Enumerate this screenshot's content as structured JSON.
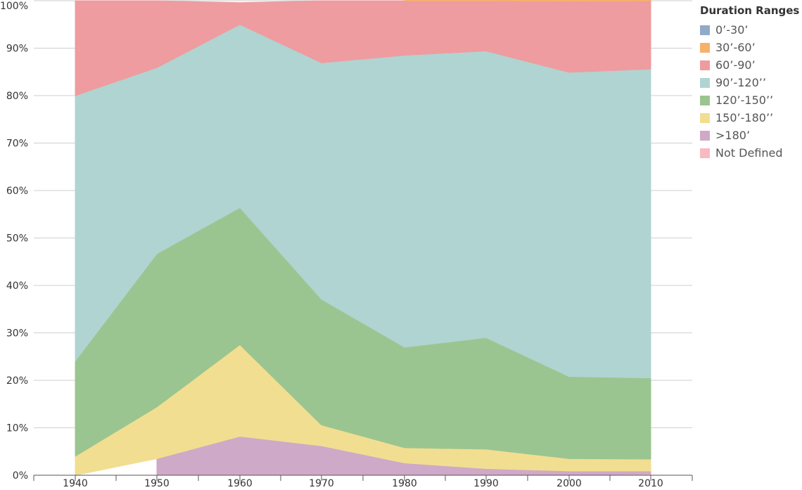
{
  "chart_data": {
    "type": "area",
    "stacked": true,
    "x": [
      "1940",
      "1950",
      "1960",
      "1970",
      "1980",
      "1990",
      "2000",
      "2010"
    ],
    "ylim": [
      0,
      100
    ],
    "yticks": [
      "0%",
      "10%",
      "20%",
      "30%",
      "40%",
      "50%",
      "60%",
      "70%",
      "80%",
      "90%",
      "100%"
    ],
    "legend_title": "Duration Ranges",
    "legend_position": "top-right",
    "grid": true,
    "series": [
      {
        "name": "Not Defined",
        "color": "#f8b9c1",
        "values": [
          null,
          null,
          null,
          null,
          null,
          null,
          0.0,
          0.3
        ]
      },
      {
        "name": ">180’",
        "color": "#cfa9c8",
        "values": [
          null,
          3.5,
          8.2,
          6.2,
          2.6,
          1.4,
          0.9,
          0.6
        ]
      },
      {
        "name": "150’-180’’",
        "color": "#f2de91",
        "values": [
          4.0,
          10.9,
          19.3,
          4.4,
          3.2,
          4.1,
          2.6,
          2.5
        ]
      },
      {
        "name": "120’-150’’",
        "color": "#9bc590",
        "values": [
          20.1,
          32.3,
          28.9,
          26.5,
          21.2,
          23.5,
          17.3,
          17.1
        ]
      },
      {
        "name": "90’-120’’",
        "color": "#b0d4d1",
        "values": [
          55.9,
          39.2,
          38.6,
          49.8,
          61.5,
          60.4,
          64.1,
          65.1
        ]
      },
      {
        "name": "60’-90’",
        "color": "#ee9c9f",
        "values": [
          20.0,
          14.1,
          4.6,
          13.1,
          11.5,
          10.6,
          15.0,
          14.4
        ]
      },
      {
        "name": "30’-60’",
        "color": "#f5b26b",
        "values": [
          null,
          null,
          null,
          null,
          0.5,
          0.5,
          0.5,
          0.5
        ]
      },
      {
        "name": "0’-30’",
        "color": "#90aac7",
        "values": [
          null,
          null,
          null,
          null,
          null,
          null,
          0.1,
          0.1
        ]
      }
    ],
    "legend_order": [
      "0’-30’",
      "30’-60’",
      "60’-90’",
      "90’-120’’",
      "120’-150’’",
      "150’-180’’",
      ">180’",
      "Not Defined"
    ]
  }
}
